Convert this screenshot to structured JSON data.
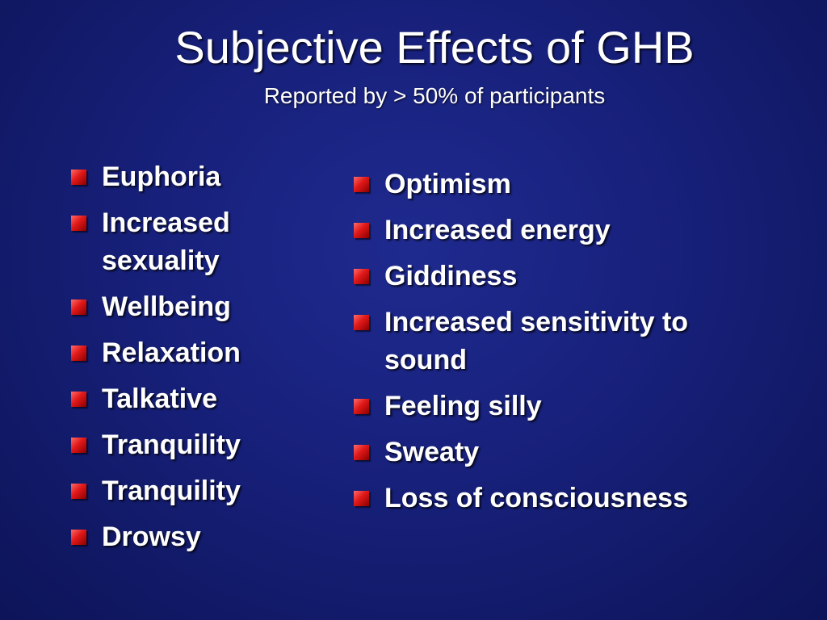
{
  "slide": {
    "title": "Subjective Effects of GHB",
    "subtitle": "Reported by > 50% of participants"
  },
  "left_list": [
    "Euphoria",
    "Increased sexuality",
    "Wellbeing",
    "Relaxation",
    "Talkative",
    "Tranquility",
    "Tranquility",
    "Drowsy"
  ],
  "right_list": [
    "Optimism",
    "Increased energy",
    "Giddiness",
    "Increased sensitivity to sound",
    "Feeling silly",
    "Sweaty",
    "Loss of consciousness"
  ],
  "colors": {
    "background": "#17207a",
    "text": "#ffffff",
    "bullet": "#e01818"
  },
  "icons": {
    "bullet": "square-bullet-icon"
  }
}
